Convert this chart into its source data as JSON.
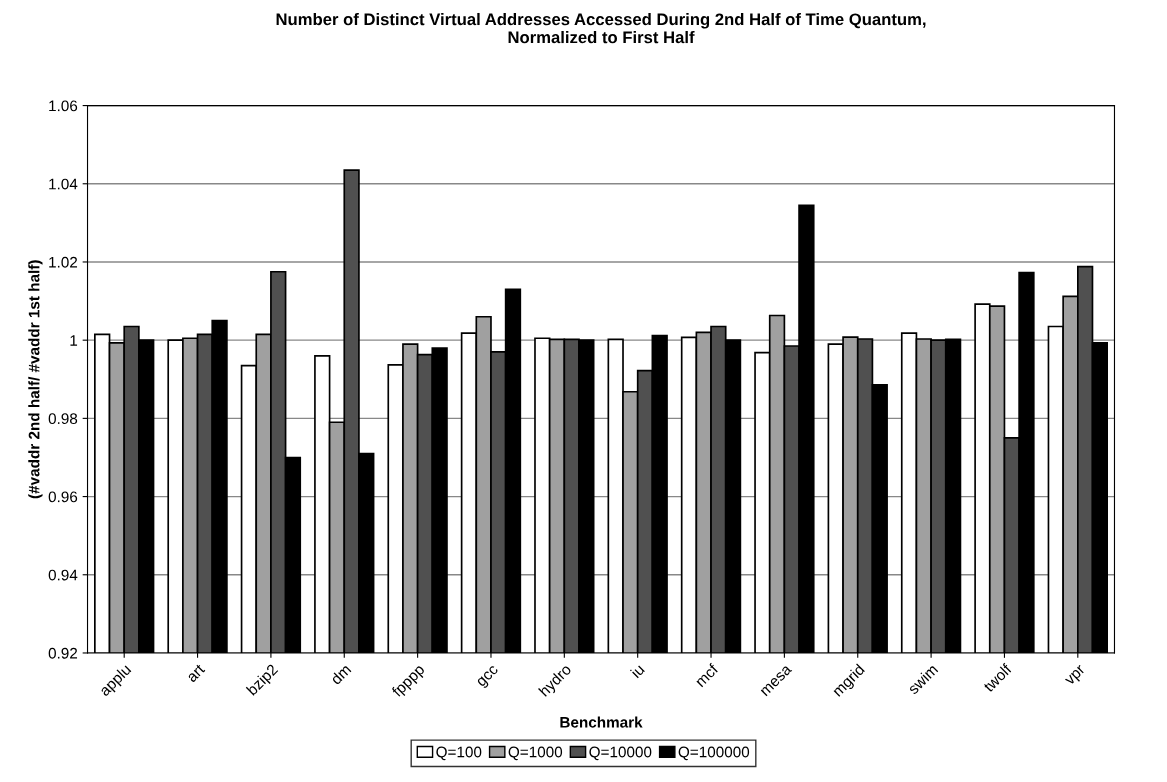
{
  "chart_data": {
    "type": "bar",
    "title": "Number of Distinct Virtual Addresses Accessed During 2nd Half of Time Quantum,\nNormalized to First Half",
    "xlabel": "Benchmark",
    "ylabel": "(#vaddr 2nd half/ #vaddr 1st half)",
    "categories": [
      "applu",
      "art",
      "bzip2",
      "dm",
      "fpppp",
      "gcc",
      "hydro",
      "iu",
      "mcf",
      "mesa",
      "mgrid",
      "swim",
      "twolf",
      "vpr"
    ],
    "series": [
      {
        "name": "Q=100",
        "color": "#ffffff",
        "values": [
          1.0015,
          1.0,
          0.9935,
          0.996,
          0.9937,
          1.0018,
          1.0005,
          1.0002,
          1.0007,
          0.9968,
          0.999,
          1.0018,
          1.0092,
          1.0035
        ]
      },
      {
        "name": "Q=1000",
        "color": "#a0a0a0",
        "values": [
          0.9993,
          1.0005,
          1.0015,
          0.979,
          0.999,
          1.006,
          1.0002,
          0.9868,
          1.002,
          1.0063,
          1.0008,
          1.0003,
          1.0087,
          1.0112
        ]
      },
      {
        "name": "Q=10000",
        "color": "#505050",
        "values": [
          1.0035,
          1.0015,
          1.0175,
          1.0435,
          0.9963,
          0.997,
          1.0002,
          0.9922,
          1.0035,
          0.9985,
          1.0003,
          1.0,
          0.975,
          1.0188
        ]
      },
      {
        "name": "Q=100000",
        "color": "#000000",
        "values": [
          1.0,
          1.005,
          0.97,
          0.971,
          0.998,
          1.013,
          1.0,
          1.0012,
          1.0,
          1.0345,
          0.9886,
          1.0002,
          1.0173,
          0.9993
        ]
      }
    ],
    "ylim": [
      0.92,
      1.06
    ],
    "yticks": [
      0.92,
      0.94,
      0.96,
      0.98,
      1,
      1.02,
      1.04,
      1.06
    ],
    "grid": "y",
    "legend": "bottom"
  }
}
